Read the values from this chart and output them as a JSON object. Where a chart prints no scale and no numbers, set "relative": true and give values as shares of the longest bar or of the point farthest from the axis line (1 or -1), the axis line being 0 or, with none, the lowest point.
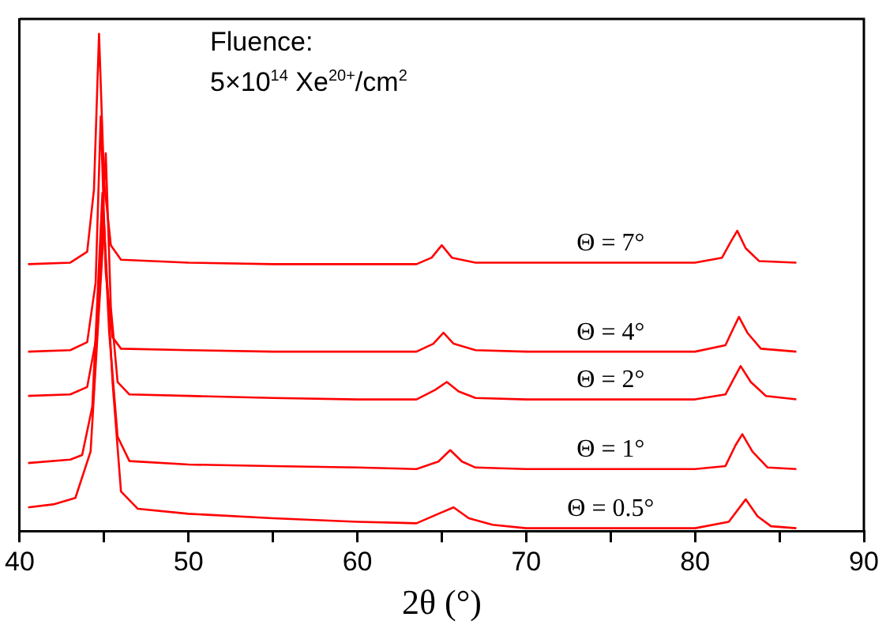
{
  "chart_data": {
    "type": "line",
    "relative": true,
    "xlabel": "2θ (°)",
    "xlim": [
      40,
      90
    ],
    "xticks": [
      40,
      {
        "value": 45,
        "label": null
      },
      50,
      {
        "value": 55,
        "label": null
      },
      60,
      {
        "value": 65,
        "label": null
      },
      70,
      {
        "value": 75,
        "label": null
      },
      80,
      {
        "value": 85,
        "label": null
      },
      90
    ],
    "grid": false,
    "legend": false,
    "marker": "none",
    "line_style": "solid",
    "annotations": [
      "Fluence:",
      "5×10$^{14}$ Xe$^{20+}$/cm$^{2}$"
    ],
    "series": [
      {
        "name": "Θ = 7°",
        "color": "#ff0000",
        "x": [
          40.5,
          43,
          44,
          44.4,
          44.7,
          45.0,
          45.4,
          46,
          50,
          55,
          60,
          63.5,
          64.4,
          65.0,
          65.6,
          67,
          70,
          75,
          80,
          81.6,
          82.1,
          82.5,
          83.0,
          83.8,
          86
        ],
        "values": [
          0.537,
          0.54,
          0.562,
          0.687,
          1,
          0.703,
          0.575,
          0.546,
          0.54,
          0.537,
          0.537,
          0.537,
          0.55,
          0.575,
          0.55,
          0.54,
          0.54,
          0.54,
          0.54,
          0.55,
          0.581,
          0.604,
          0.569,
          0.543,
          0.54
        ]
      },
      {
        "name": "Θ = 4°",
        "color": "#ff0000",
        "x": [
          40.5,
          43,
          44,
          44.5,
          44.8,
          45.1,
          45.5,
          46,
          50,
          55,
          60,
          63.5,
          64.5,
          65.1,
          65.7,
          67,
          70,
          75,
          80,
          81.8,
          82.2,
          82.6,
          83.1,
          83.9,
          86
        ],
        "values": [
          0.361,
          0.364,
          0.38,
          0.5,
          0.834,
          0.52,
          0.39,
          0.367,
          0.364,
          0.361,
          0.361,
          0.361,
          0.377,
          0.399,
          0.377,
          0.364,
          0.361,
          0.361,
          0.361,
          0.374,
          0.403,
          0.431,
          0.399,
          0.367,
          0.361
        ]
      },
      {
        "name": "Θ = 2°",
        "color": "#ff0000",
        "x": [
          40.5,
          43,
          44,
          44.6,
          45.1,
          45.4,
          45.8,
          46.5,
          50,
          55,
          60,
          63.5,
          64.6,
          65.3,
          66,
          67,
          70,
          75,
          80,
          81.8,
          82.3,
          82.7,
          83.3,
          84.2,
          86
        ],
        "values": [
          0.272,
          0.275,
          0.29,
          0.4,
          0.76,
          0.45,
          0.3,
          0.275,
          0.272,
          0.268,
          0.265,
          0.265,
          0.284,
          0.3,
          0.281,
          0.268,
          0.265,
          0.265,
          0.265,
          0.275,
          0.307,
          0.332,
          0.3,
          0.272,
          0.265
        ]
      },
      {
        "name": "Θ = 1°",
        "color": "#ff0000",
        "x": [
          40.5,
          43,
          43.7,
          44.3,
          44.9,
          45.3,
          45.8,
          46.5,
          50,
          55,
          60,
          63.5,
          64.8,
          65.5,
          66.2,
          67,
          70,
          75,
          80,
          81.8,
          82.4,
          82.8,
          83.4,
          84.3,
          86
        ],
        "values": [
          0.137,
          0.144,
          0.153,
          0.25,
          0.68,
          0.4,
          0.19,
          0.141,
          0.134,
          0.131,
          0.128,
          0.125,
          0.14,
          0.163,
          0.14,
          0.128,
          0.125,
          0.125,
          0.125,
          0.131,
          0.173,
          0.195,
          0.16,
          0.128,
          0.125
        ]
      },
      {
        "name": "Θ = 0.5°",
        "color": "#ff0000",
        "x": [
          40.5,
          42,
          43.3,
          44.2,
          45.0,
          45.5,
          46,
          47,
          50,
          55,
          60,
          63.5,
          64.8,
          65.7,
          66.6,
          68,
          70,
          75,
          80,
          82,
          83.0,
          83.7,
          84.5,
          86
        ],
        "values": [
          0.048,
          0.054,
          0.067,
          0.16,
          0.617,
          0.3,
          0.08,
          0.045,
          0.035,
          0.026,
          0.019,
          0.016,
          0.035,
          0.048,
          0.026,
          0.013,
          0.006,
          0.006,
          0.006,
          0.019,
          0.064,
          0.03,
          0.01,
          0.006
        ]
      }
    ]
  }
}
